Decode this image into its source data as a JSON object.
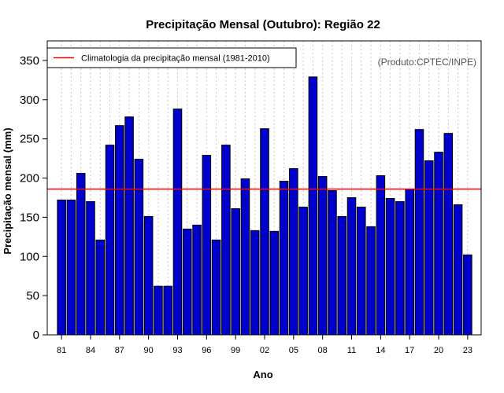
{
  "chart_data": {
    "type": "bar",
    "title": "Precipitação Mensal (Outubro): Região 22",
    "xlabel": "Ano",
    "ylabel": "Precipitação mensal (mm)",
    "credit": "(Produto:CPTEC/INPE)",
    "legend": {
      "label": "Climatologia da precipitação mensal (1981-2010)",
      "position": "top-left"
    },
    "climatology": 186,
    "ylim": [
      0,
      375
    ],
    "yticks": [
      0,
      50,
      100,
      150,
      200,
      250,
      300,
      350
    ],
    "xtick_labels": [
      "81",
      "84",
      "87",
      "90",
      "93",
      "96",
      "99",
      "02",
      "05",
      "08",
      "11",
      "14",
      "17",
      "20",
      "23"
    ],
    "categories": [
      "1981",
      "1982",
      "1983",
      "1984",
      "1985",
      "1986",
      "1987",
      "1988",
      "1989",
      "1990",
      "1991",
      "1992",
      "1993",
      "1994",
      "1995",
      "1996",
      "1997",
      "1998",
      "1999",
      "2000",
      "2001",
      "2002",
      "2003",
      "2004",
      "2005",
      "2006",
      "2007",
      "2008",
      "2009",
      "2010",
      "2011",
      "2012",
      "2013",
      "2014",
      "2015",
      "2016",
      "2017",
      "2018",
      "2019",
      "2020",
      "2021",
      "2022",
      "2023"
    ],
    "values": [
      172,
      172,
      206,
      170,
      121,
      242,
      267,
      278,
      224,
      151,
      62,
      62,
      288,
      135,
      140,
      229,
      121,
      242,
      161,
      199,
      133,
      263,
      132,
      196,
      212,
      163,
      329,
      202,
      184,
      151,
      175,
      163,
      138,
      203,
      174,
      170,
      186,
      262,
      222,
      233,
      257,
      166,
      102
    ],
    "colors": {
      "bar_fill": "#0000cc",
      "bar_stroke": "#000000",
      "climatology_line": "#ff0000",
      "grid": "#c8c8c8",
      "credit_text": "#555555"
    }
  }
}
